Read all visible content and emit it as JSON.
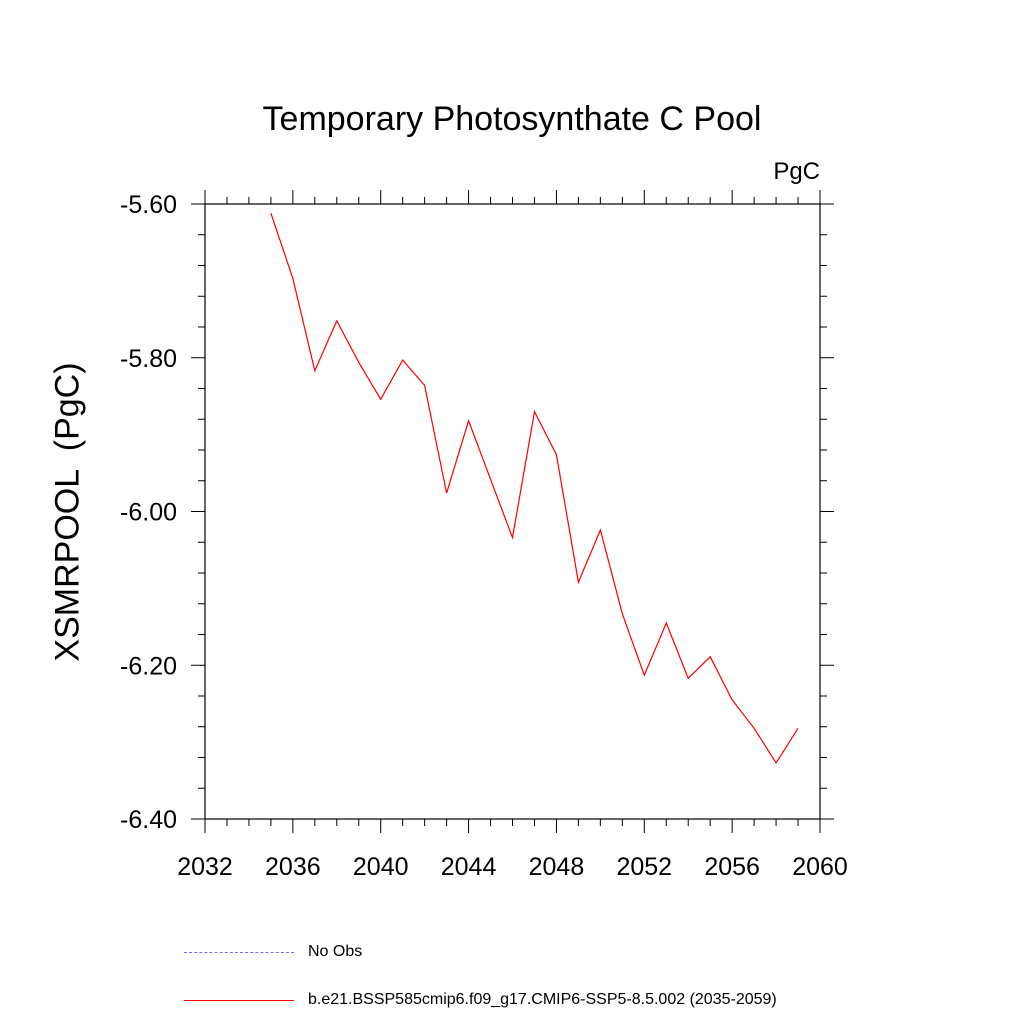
{
  "chart_data": {
    "type": "line",
    "title": "Temporary Photosynthate C Pool",
    "units": "PgC",
    "ylabel": "XSMRPOOL  (PgC)",
    "xlabel": "",
    "xlim": [
      2032,
      2060
    ],
    "ylim": [
      -6.4,
      -5.6
    ],
    "xticks": [
      2032,
      2036,
      2040,
      2044,
      2048,
      2052,
      2056,
      2060
    ],
    "yticks": [
      -5.6,
      -5.8,
      -6.0,
      -6.2,
      -6.4
    ],
    "ytick_labels": [
      "-5.60",
      "-5.80",
      "-6.00",
      "-6.20",
      "-6.40"
    ],
    "grid": false,
    "legend_position": "bottom",
    "series": [
      {
        "name": "b.e21.BSSP585cmip6.f09_g17.CMIP6-SSP5-8.5.002 (2035-2059)",
        "color": "#ff0000",
        "style": "solid",
        "x": [
          2035,
          2036,
          2037,
          2038,
          2039,
          2040,
          2041,
          2042,
          2043,
          2044,
          2045,
          2046,
          2047,
          2048,
          2049,
          2050,
          2051,
          2052,
          2053,
          2054,
          2055,
          2056,
          2057,
          2058,
          2059
        ],
        "y": [
          -5.612,
          -5.697,
          -5.817,
          -5.752,
          -5.806,
          -5.854,
          -5.803,
          -5.836,
          -5.976,
          -5.882,
          -5.958,
          -6.034,
          -5.87,
          -5.926,
          -6.092,
          -6.024,
          -6.133,
          -6.213,
          -6.145,
          -6.217,
          -6.189,
          -6.245,
          -6.282,
          -6.327,
          -6.282
        ]
      }
    ],
    "legend": [
      {
        "label": "No Obs",
        "color": "#7b68ee",
        "style": "dashed"
      },
      {
        "label": "b.e21.BSSP585cmip6.f09_g17.CMIP6-SSP5-8.5.002 (2035-2059)",
        "color": "#ff0000",
        "style": "solid"
      }
    ]
  }
}
